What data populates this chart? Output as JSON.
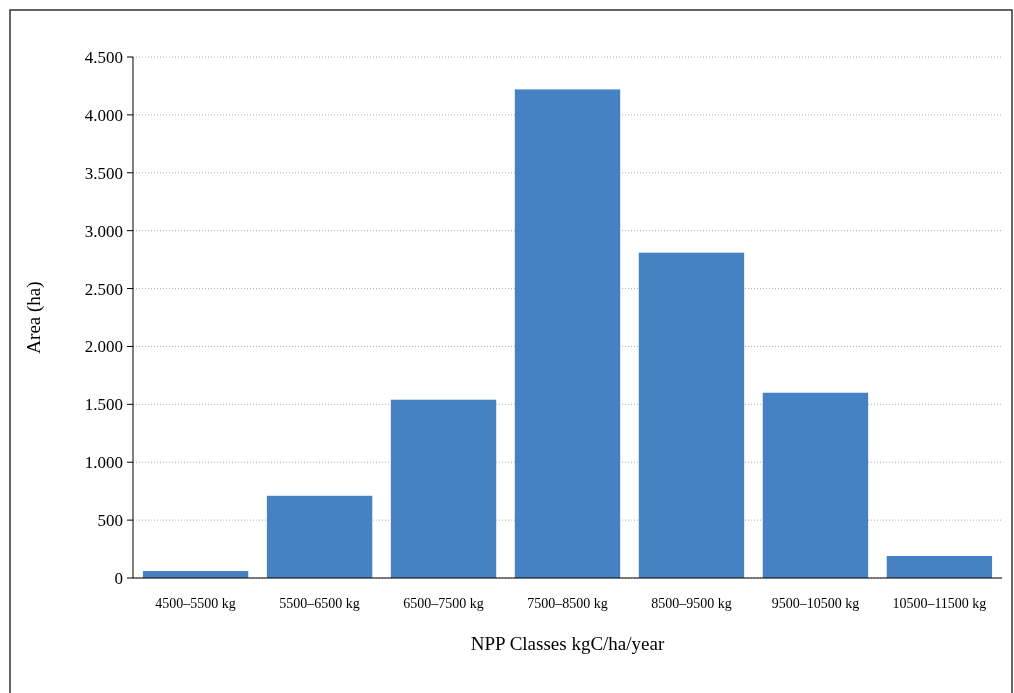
{
  "chart_data": {
    "type": "bar",
    "xlabel": "NPP Classes kgC/ha/year",
    "ylabel": "Area (ha)",
    "categories": [
      "4500–5500 kg",
      "5500–6500 kg",
      "6500–7500 kg",
      "7500–8500 kg",
      "8500–9500 kg",
      "9500–10500 kg",
      "10500–11500 kg"
    ],
    "values": [
      60,
      710,
      1540,
      4220,
      2810,
      1600,
      190
    ],
    "color": "#4581c3",
    "ylim": [
      0,
      4500
    ],
    "yticks": [
      0,
      500,
      {
        "value": 1000,
        "label": "1.000"
      },
      {
        "value": 1500,
        "label": "1.500"
      },
      {
        "value": 2000,
        "label": "2.000"
      },
      {
        "value": 2500,
        "label": "2.500"
      },
      {
        "value": 3000,
        "label": "3.000"
      },
      {
        "value": 3500,
        "label": "3.500"
      },
      {
        "value": 4000,
        "label": "4.000"
      },
      {
        "value": 4500,
        "label": "4.500"
      }
    ],
    "grid": "y"
  }
}
